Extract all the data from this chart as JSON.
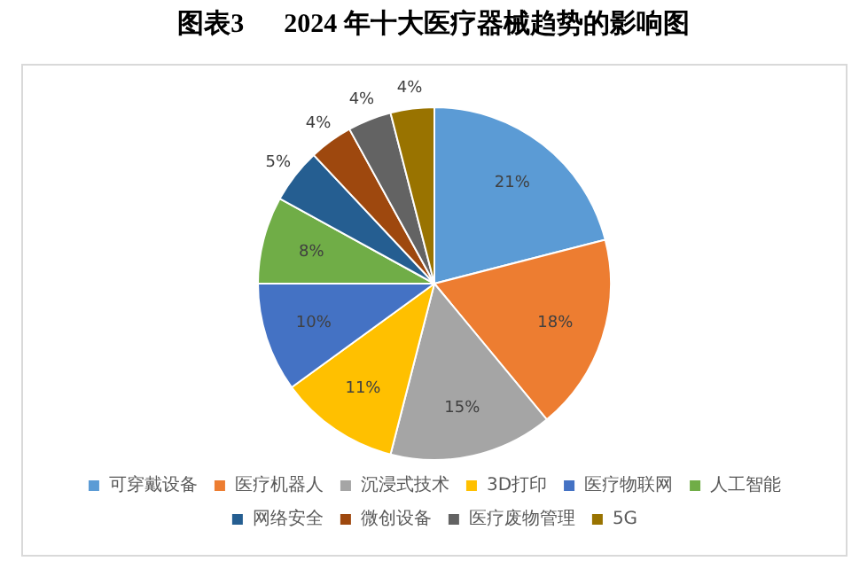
{
  "chart_data": {
    "type": "pie",
    "title": "图表3      2024 年十大医疗器械趋势的影响图",
    "categories": [
      "可穿戴设备",
      "医疗机器人",
      "沉浸式技术",
      "3D打印",
      "医疗物联网",
      "人工智能",
      "网络安全",
      "微创设备",
      "医疗废物管理",
      "5G"
    ],
    "values": [
      21,
      18,
      15,
      11,
      10,
      8,
      5,
      4,
      4,
      4
    ],
    "colors": [
      "#5b9bd5",
      "#ed7d31",
      "#a5a5a5",
      "#ffc000",
      "#4472c4",
      "#70ad47",
      "#255e91",
      "#9e480e",
      "#636363",
      "#997300"
    ],
    "value_labels": [
      "21%",
      "18%",
      "15%",
      "11%",
      "10%",
      "8%",
      "5%",
      "4%",
      "4%",
      "4%"
    ],
    "legend": "bottom"
  }
}
